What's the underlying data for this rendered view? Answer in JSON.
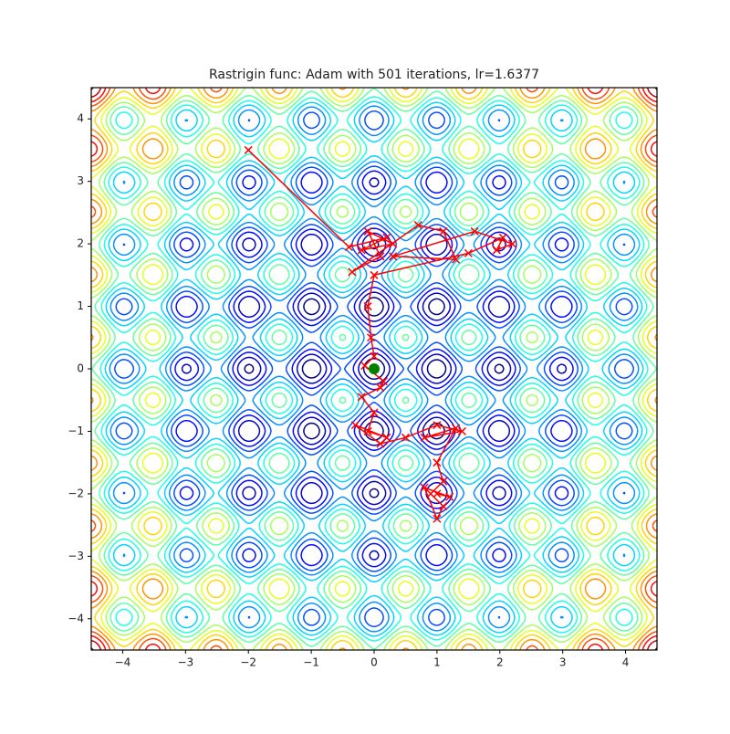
{
  "chart_data": {
    "type": "contour",
    "title": "Rastrigin func: Adam with 501 iterations, lr=1.6377",
    "function": "rastrigin",
    "colormap": "jet",
    "levels": [
      5,
      10,
      15,
      20,
      25,
      30,
      35,
      40,
      45,
      50,
      55,
      60,
      65,
      70,
      75,
      80
    ],
    "xlim": [
      -4.5,
      4.5
    ],
    "ylim": [
      -4.5,
      4.5
    ],
    "xticks": [
      {
        "value": -4,
        "label": "−4"
      },
      {
        "value": -3,
        "label": "−3"
      },
      {
        "value": -2,
        "label": "−2"
      },
      {
        "value": -1,
        "label": "−1"
      },
      0,
      1,
      2,
      3,
      4
    ],
    "yticks": [
      {
        "value": -4,
        "label": "−4"
      },
      {
        "value": -3,
        "label": "−3"
      },
      {
        "value": -2,
        "label": "−2"
      },
      {
        "value": -1,
        "label": "−1"
      },
      0,
      1,
      2,
      3,
      4
    ],
    "path": {
      "color": "#ff0000",
      "x": [
        -2,
        -0.4,
        0.2,
        -0.2,
        0.3,
        -0.1,
        0.1,
        -0.35,
        0.7,
        1.1,
        1.3,
        0.3,
        1.6,
        2.2,
        1.95,
        2.05,
        1.5,
        0,
        -0.1,
        -0.05,
        0,
        -0.15,
        0.15,
        0.1,
        -0.2,
        0,
        -0.1,
        0.2,
        -0.3,
        0.1,
        0.5,
        1.0,
        1.4,
        0.8,
        1.3,
        1.0,
        1.1,
        0.9,
        1.1,
        1.0,
        0.8,
        1.2,
        1.0
      ],
      "y": [
        3.5,
        1.95,
        2.1,
        1.9,
        2.0,
        2.2,
        1.8,
        1.55,
        2.3,
        2.2,
        1.75,
        1.8,
        2.2,
        2.0,
        1.9,
        2.1,
        1.85,
        1.5,
        1.0,
        0.5,
        0.2,
        0.05,
        -0.2,
        -0.3,
        -0.45,
        -0.7,
        -1.0,
        -1.1,
        -0.9,
        -1.2,
        -1.1,
        -0.9,
        -1.0,
        -1.1,
        -0.95,
        -1.5,
        -1.8,
        -2.0,
        -2.2,
        -2.4,
        -1.9,
        -2.05,
        -2.0
      ]
    },
    "minimum": {
      "x": 0,
      "y": 0,
      "color": "#008000"
    }
  }
}
